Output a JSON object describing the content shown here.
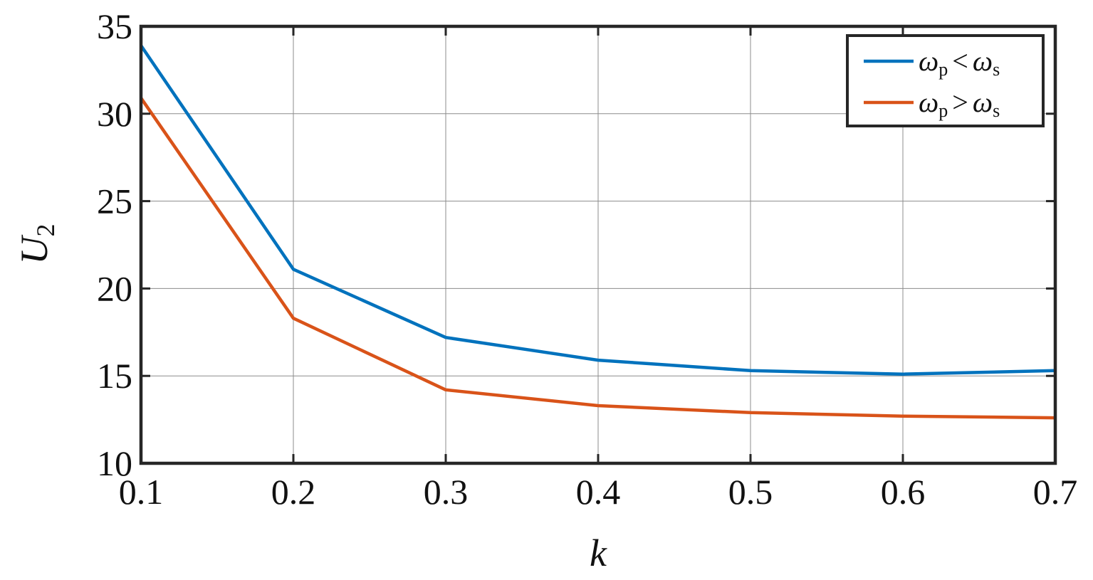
{
  "chart_data": {
    "type": "line",
    "xlabel": "k",
    "ylabel": {
      "base": "U",
      "sub": "2"
    },
    "x": [
      0.1,
      0.2,
      0.3,
      0.4,
      0.5,
      0.6,
      0.7
    ],
    "xlim": [
      0.1,
      0.7
    ],
    "ylim": [
      10,
      35
    ],
    "xticks": [
      "0.1",
      "0.2",
      "0.3",
      "0.4",
      "0.5",
      "0.6",
      "0.7"
    ],
    "yticks": [
      "10",
      "15",
      "20",
      "25",
      "30",
      "35"
    ],
    "grid": true,
    "legend_position": "top-right",
    "series": [
      {
        "name": "ωp < ωs",
        "legend": {
          "left": "ω",
          "left_sub": "p",
          "op": "<",
          "right": "ω",
          "right_sub": "s"
        },
        "color": "#0072BD",
        "values": [
          33.9,
          21.1,
          17.2,
          15.9,
          15.3,
          15.1,
          15.3
        ]
      },
      {
        "name": "ωp > ωs",
        "legend": {
          "left": "ω",
          "left_sub": "p",
          "op": ">",
          "right": "ω",
          "right_sub": "s"
        },
        "color": "#D95319",
        "values": [
          30.9,
          18.3,
          14.2,
          13.3,
          12.9,
          12.7,
          12.6
        ]
      }
    ]
  }
}
